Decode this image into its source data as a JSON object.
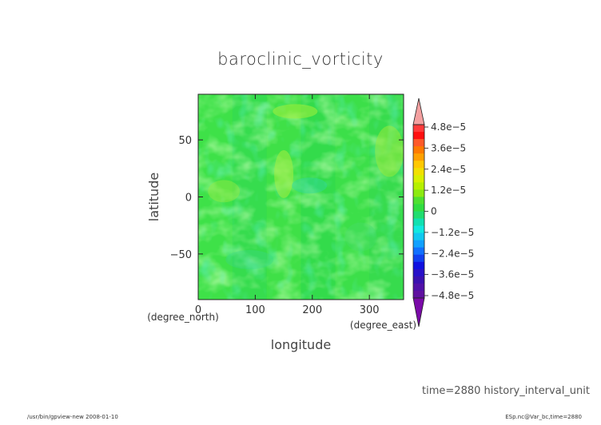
{
  "chart_data": {
    "type": "heatmap",
    "title": "baroclinic_vorticity",
    "xlabel": "longitude",
    "ylabel": "latitude",
    "x_unit": "(degree_east)",
    "y_unit": "(degree_north)",
    "xlim": [
      0,
      360
    ],
    "ylim": [
      -90,
      90
    ],
    "x_ticks": [
      "0",
      "100",
      "200",
      "300"
    ],
    "x_tick_values": [
      0,
      100,
      200,
      300
    ],
    "y_ticks": [
      "50",
      "0",
      "−50"
    ],
    "y_tick_values": [
      50,
      0,
      -50
    ],
    "colorbar": {
      "labels": [
        "4.8e−5",
        "3.6e−5",
        "2.4e−5",
        "1.2e−5",
        "0",
        "−1.2e−5",
        "−2.4e−5",
        "−3.6e−5",
        "−4.8e−5"
      ],
      "values": [
        4.8e-05,
        3.6e-05,
        2.4e-05,
        1.2e-05,
        0,
        -1.2e-05,
        -2.4e-05,
        -3.6e-05,
        -4.8e-05
      ],
      "extend": "both",
      "high_color": "#f4a0a0",
      "low_color": "#7a0aa8"
    },
    "dominant_color": "#33dd44"
  },
  "annotation": "time=2880  history_interval_unit",
  "footer": {
    "left": "/usr/bin/gpview-new   2008-01-10",
    "right": "ESp.nc@Var_bc,time=2880"
  }
}
